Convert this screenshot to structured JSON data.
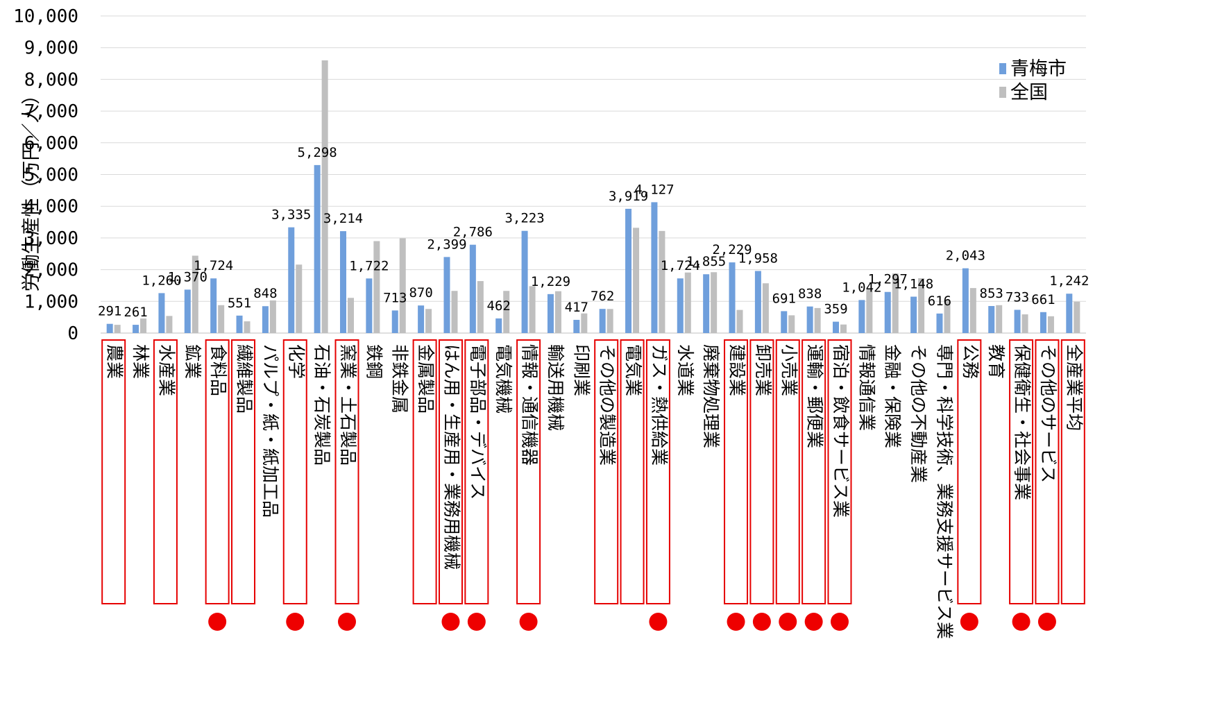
{
  "chart_data": {
    "type": "bar",
    "ylabel": "労働生産性（万円／人）",
    "ylim": [
      0,
      10000
    ],
    "yticks": [
      "0",
      "1,000",
      "2,000",
      "3,000",
      "4,000",
      "5,000",
      "6,000",
      "7,000",
      "8,000",
      "9,000",
      "10,000"
    ],
    "grid": true,
    "legend_position": "top-right",
    "categories": [
      "農業",
      "林業",
      "水産業",
      "鉱業",
      "食料品",
      "繊維製品",
      "パルプ・紙・紙加工品",
      "化学",
      "石油・石炭製品",
      "窯業・土石製品",
      "鉄鋼",
      "非鉄金属",
      "金属製品",
      "はん用・生産用・業務用機械",
      "電子部品・デバイス",
      "電気機械",
      "情報・通信機器",
      "輸送用機械",
      "印刷業",
      "その他の製造業",
      "電気業",
      "ガス・熱供給業",
      "水道業",
      "廃棄物処理業",
      "建設業",
      "卸売業",
      "小売業",
      "運輸・郵便業",
      "宿泊・飲食サービス業",
      "情報通信業",
      "金融・保険業",
      "その他の不動産業",
      "専門・科学技術、業務支援サービス業",
      "公務",
      "教育",
      "保健衛生・社会事業",
      "その他のサービス",
      "全産業平均"
    ],
    "boxed": [
      true,
      false,
      true,
      false,
      true,
      true,
      false,
      true,
      false,
      true,
      false,
      false,
      true,
      true,
      true,
      false,
      true,
      false,
      false,
      true,
      true,
      true,
      false,
      false,
      true,
      true,
      true,
      true,
      true,
      false,
      false,
      false,
      false,
      true,
      false,
      true,
      true,
      true
    ],
    "dotted": [
      false,
      false,
      false,
      false,
      true,
      false,
      false,
      true,
      false,
      true,
      false,
      false,
      false,
      true,
      true,
      false,
      true,
      false,
      false,
      false,
      false,
      true,
      false,
      false,
      true,
      true,
      true,
      true,
      true,
      false,
      false,
      false,
      false,
      true,
      false,
      true,
      true,
      false
    ],
    "series": [
      {
        "name": "青梅市",
        "color": "#6f9fdc",
        "values": [
          291,
          261,
          1260,
          1370,
          1724,
          551,
          848,
          3335,
          5298,
          3214,
          1722,
          713,
          870,
          2399,
          2786,
          462,
          3223,
          1229,
          417,
          762,
          3919,
          4127,
          1724,
          1855,
          2229,
          1958,
          691,
          838,
          359,
          1042,
          1297,
          1148,
          616,
          2043,
          853,
          733,
          661,
          1242
        ],
        "labels": [
          "291",
          "261",
          "1,260",
          "1,370",
          "1,724",
          "551",
          "848",
          "3,335",
          "5,298",
          "3,214",
          "1,722",
          "713",
          "870",
          "2,399",
          "2,786",
          "462",
          "3,223",
          "1,229",
          "417",
          "762",
          "3,919",
          "4,127",
          "1,724",
          "1,855",
          "2,229",
          "1,958",
          "691",
          "838",
          "359",
          "1,042",
          "1,297",
          "1,148",
          "616",
          "2,043",
          "853",
          "733",
          "661",
          "1,242"
        ]
      },
      {
        "name": "全国",
        "color": "#bfbfbf",
        "values": [
          260,
          460,
          540,
          2440,
          880,
          370,
          1030,
          2160,
          8600,
          1110,
          2900,
          2990,
          760,
          1330,
          1640,
          1330,
          1480,
          1320,
          620,
          760,
          3320,
          3220,
          1910,
          1920,
          730,
          1570,
          560,
          790,
          270,
          1400,
          1880,
          1730,
          1040,
          1420,
          880,
          590,
          530,
          990
        ]
      }
    ]
  }
}
